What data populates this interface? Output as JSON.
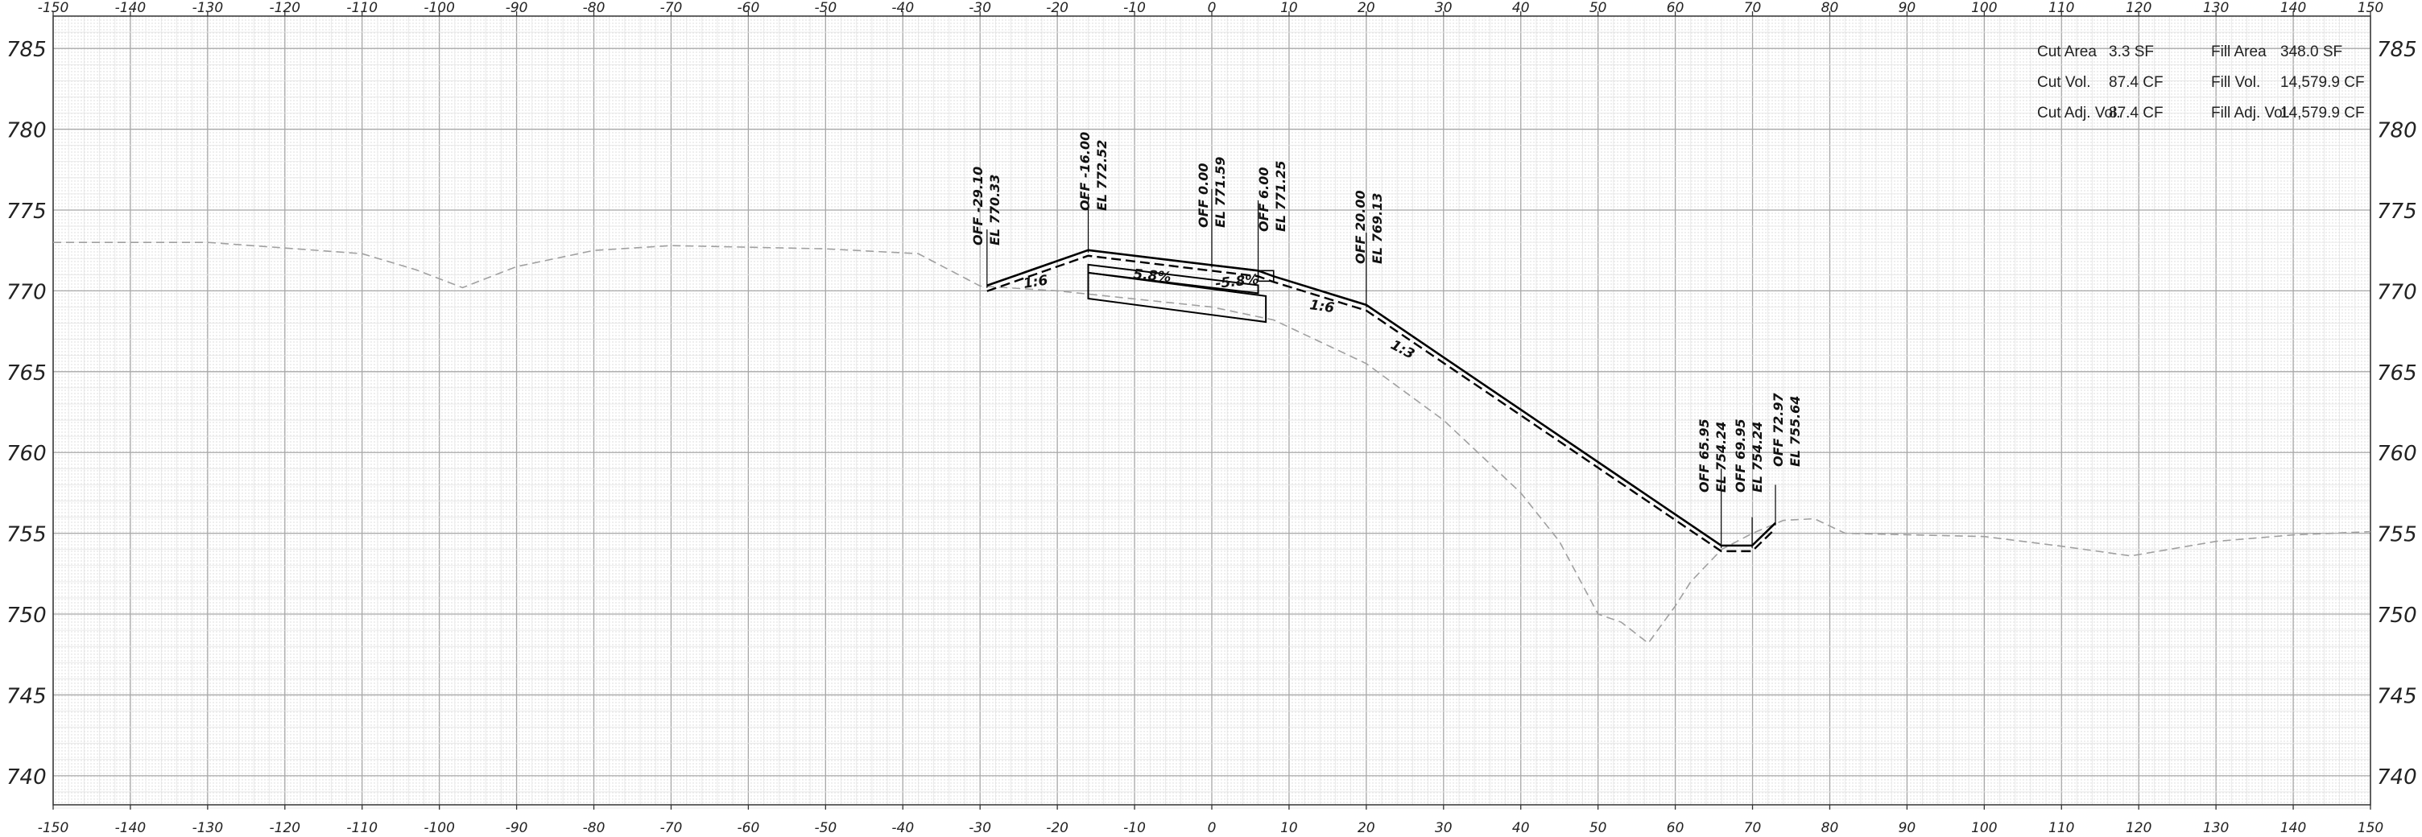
{
  "x_axis_ticks": [
    "-150",
    "-140",
    "-130",
    "-120",
    "-110",
    "-100",
    "-90",
    "-80",
    "-70",
    "-60",
    "-50",
    "-40",
    "-30",
    "-20",
    "-10",
    "0",
    "10",
    "20",
    "30",
    "40",
    "50",
    "60",
    "70",
    "80",
    "90",
    "100",
    "110",
    "120",
    "130",
    "140",
    "150"
  ],
  "y_axis_ticks": [
    "785",
    "780",
    "775",
    "770",
    "765",
    "760",
    "755",
    "750",
    "745",
    "740"
  ],
  "quantities": {
    "cut_area_label": "Cut Area",
    "cut_area_value": "3.3 SF",
    "cut_vol_label": "Cut Vol.",
    "cut_vol_value": "87.4 CF",
    "cut_adj_label": "Cut Adj. Vol.",
    "cut_adj_value": "87.4 CF",
    "fill_area_label": "Fill Area",
    "fill_area_value": "348.0 SF",
    "fill_vol_label": "Fill Vol.",
    "fill_vol_value": "14,579.9 CF",
    "fill_adj_label": "Fill Adj. Vol.",
    "fill_adj_value": "14,579.9 CF"
  },
  "point_labels": [
    {
      "off": "OFF -29.10",
      "el": "EL 770.33"
    },
    {
      "off": "OFF -16.00",
      "el": "EL 772.52"
    },
    {
      "off": "OFF 0.00",
      "el": "EL 771.59"
    },
    {
      "off": "OFF 6.00",
      "el": "EL 771.25"
    },
    {
      "off": "OFF 20.00",
      "el": "EL 769.13"
    },
    {
      "off": "OFF 65.95",
      "el": "EL 754.24"
    },
    {
      "off": "OFF 69.95",
      "el": "EL 754.24"
    },
    {
      "off": "OFF 72.97",
      "el": "EL 755.64"
    }
  ],
  "slope_labels": [
    "1:6",
    "5.8%",
    "-5.8%",
    "1:6",
    "1:3"
  ],
  "design_profile": [
    [
      -29.1,
      770.33
    ],
    [
      -16.0,
      772.52
    ],
    [
      0.0,
      771.59
    ],
    [
      6.0,
      771.25
    ],
    [
      8.0,
      770.9
    ],
    [
      20.0,
      769.13
    ],
    [
      65.95,
      754.24
    ],
    [
      69.95,
      754.24
    ],
    [
      72.97,
      755.64
    ]
  ],
  "existing_ground": [
    [
      -150,
      773
    ],
    [
      -130,
      773
    ],
    [
      -110,
      772.3
    ],
    [
      -103,
      771.3
    ],
    [
      -97,
      770.2
    ],
    [
      -90,
      771.5
    ],
    [
      -80,
      772.5
    ],
    [
      -70,
      772.8
    ],
    [
      -60,
      772.7
    ],
    [
      -50,
      772.6
    ],
    [
      -38,
      772.3
    ],
    [
      -30,
      770.3
    ],
    [
      -20,
      770
    ],
    [
      -10,
      769.5
    ],
    [
      0,
      769
    ],
    [
      8,
      768.2
    ],
    [
      20,
      765.5
    ],
    [
      30,
      762
    ],
    [
      40,
      757.5
    ],
    [
      45,
      754.5
    ],
    [
      50,
      750
    ],
    [
      53,
      749.5
    ],
    [
      56.5,
      748.2
    ],
    [
      60,
      750.5
    ],
    [
      62,
      752
    ],
    [
      66,
      754
    ],
    [
      70,
      755
    ],
    [
      74,
      755.8
    ],
    [
      78,
      755.9
    ],
    [
      82,
      755
    ],
    [
      100,
      754.8
    ],
    [
      110,
      754.2
    ],
    [
      119,
      753.6
    ],
    [
      130,
      754.5
    ],
    [
      140,
      754.9
    ],
    [
      150,
      755.1
    ]
  ],
  "colors": {
    "grid_major": "#a8a8a8",
    "grid_minor": "#e2e2e2",
    "existing_ground": "#a0a0a0",
    "design": "#000000"
  }
}
